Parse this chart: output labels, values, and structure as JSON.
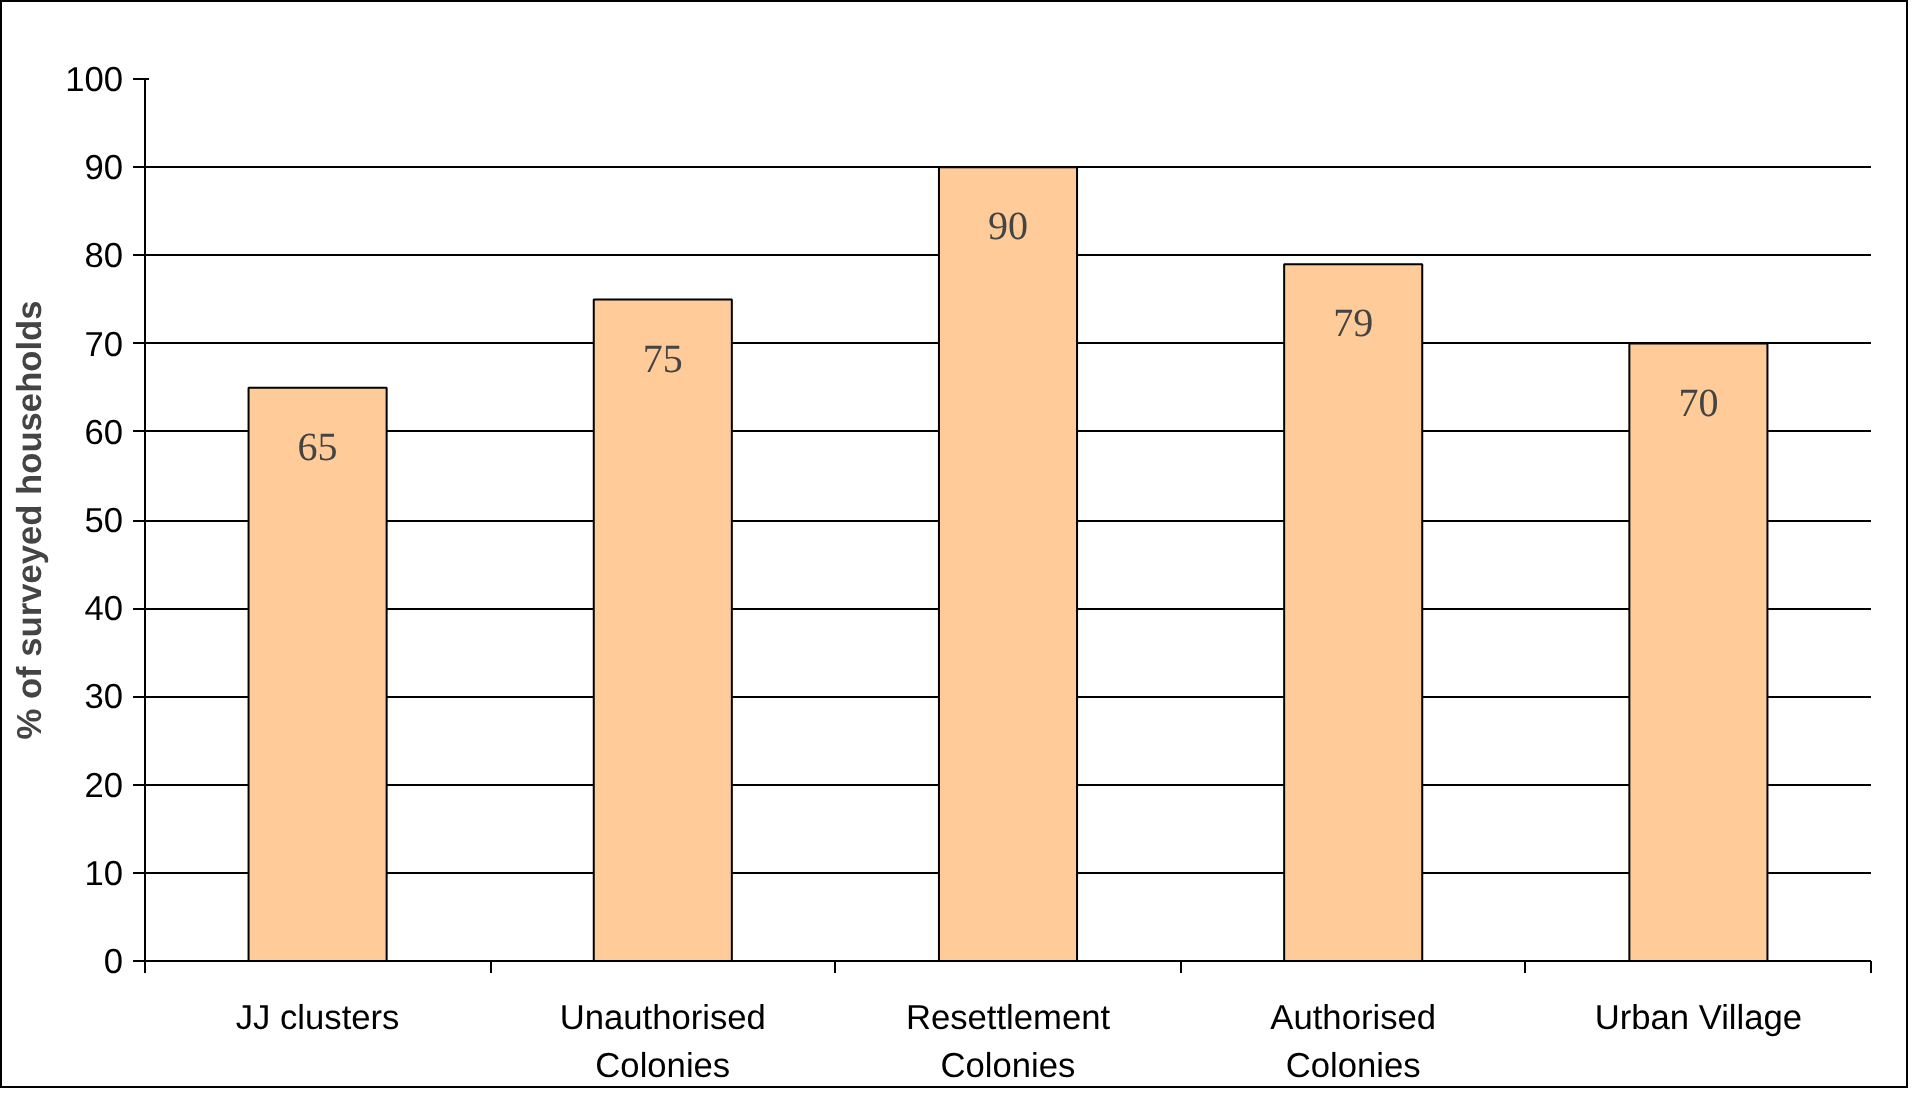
{
  "chart_data": {
    "type": "bar",
    "ylabel": "% of surveyed households",
    "categories": [
      "JJ clusters",
      "Unauthorised\nColonies",
      "Resettlement\nColonies",
      "Authorised\nColonies",
      "Urban Village"
    ],
    "values": [
      65,
      75,
      90,
      79,
      70
    ],
    "color": "#ffcc99",
    "ylim": [
      0,
      100
    ],
    "yticks": [
      0,
      10,
      20,
      30,
      40,
      50,
      60,
      70,
      80,
      90,
      100
    ],
    "grid": "y",
    "data_labels": true
  }
}
